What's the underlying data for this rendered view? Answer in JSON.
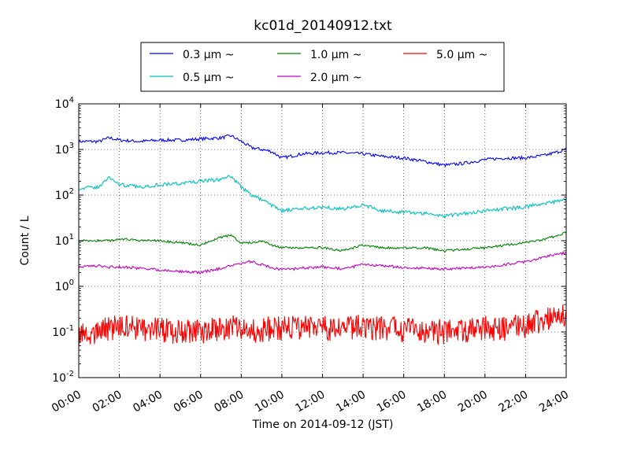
{
  "chart_data": {
    "type": "line",
    "title": "kc01d_20140912.txt",
    "xlabel": "Time on 2014-09-12 (JST)",
    "ylabel": "Count / L",
    "x_ticks": [
      "00:00",
      "02:00",
      "04:00",
      "06:00",
      "08:00",
      "10:00",
      "12:00",
      "14:00",
      "16:00",
      "18:00",
      "20:00",
      "22:00",
      "24:00"
    ],
    "y_ticks": [
      {
        "base": "10",
        "exp": "-2",
        "value": 0.01
      },
      {
        "base": "10",
        "exp": "-1",
        "value": 0.1
      },
      {
        "base": "10",
        "exp": "0",
        "value": 1
      },
      {
        "base": "10",
        "exp": "1",
        "value": 10
      },
      {
        "base": "10",
        "exp": "2",
        "value": 100
      },
      {
        "base": "10",
        "exp": "3",
        "value": 1000
      },
      {
        "base": "10",
        "exp": "4",
        "value": 10000
      }
    ],
    "xlim": [
      "00:00",
      "24:00"
    ],
    "ylim": [
      0.01,
      10000
    ],
    "y_scale": "log",
    "grid": true,
    "legend_position": "top-center",
    "series": [
      {
        "name": "0.3 μm ~",
        "color": "#0000ff",
        "x": [
          "00:00",
          "01:00",
          "01:30",
          "02:00",
          "03:00",
          "04:00",
          "05:00",
          "06:00",
          "07:00",
          "07:30",
          "08:00",
          "08:30",
          "09:00",
          "09:30",
          "10:00",
          "11:00",
          "12:00",
          "13:00",
          "14:00",
          "15:00",
          "16:00",
          "17:00",
          "18:00",
          "19:00",
          "20:00",
          "21:00",
          "22:00",
          "23:00",
          "24:00"
        ],
        "values": [
          1500,
          1500,
          1800,
          1600,
          1500,
          1600,
          1600,
          1700,
          1800,
          2000,
          1500,
          1100,
          1000,
          900,
          650,
          800,
          850,
          850,
          800,
          700,
          650,
          550,
          450,
          500,
          600,
          650,
          650,
          750,
          1000
        ]
      },
      {
        "name": "0.5 μm ~",
        "color": "#00bfbf",
        "x": [
          "00:00",
          "01:00",
          "01:30",
          "02:00",
          "03:00",
          "04:00",
          "05:00",
          "06:00",
          "07:00",
          "07:30",
          "08:00",
          "08:30",
          "09:00",
          "09:30",
          "10:00",
          "11:00",
          "12:00",
          "13:00",
          "14:00",
          "15:00",
          "16:00",
          "17:00",
          "18:00",
          "19:00",
          "20:00",
          "21:00",
          "22:00",
          "23:00",
          "24:00"
        ],
        "values": [
          140,
          150,
          250,
          170,
          150,
          170,
          180,
          200,
          220,
          260,
          150,
          100,
          80,
          60,
          45,
          50,
          55,
          50,
          60,
          45,
          42,
          40,
          35,
          40,
          45,
          50,
          55,
          65,
          80
        ]
      },
      {
        "name": "1.0 μm ~",
        "color": "#008000",
        "x": [
          "00:00",
          "01:00",
          "01:30",
          "02:00",
          "03:00",
          "04:00",
          "05:00",
          "06:00",
          "07:00",
          "07:30",
          "08:00",
          "08:30",
          "09:00",
          "09:30",
          "10:00",
          "11:00",
          "12:00",
          "13:00",
          "14:00",
          "15:00",
          "16:00",
          "17:00",
          "18:00",
          "19:00",
          "20:00",
          "21:00",
          "22:00",
          "23:00",
          "24:00"
        ],
        "values": [
          10,
          10,
          10,
          11,
          10,
          10,
          9,
          8,
          12,
          13,
          9,
          9,
          10,
          8,
          7,
          7,
          7,
          6,
          8,
          7,
          7,
          7,
          6,
          6.5,
          7,
          8,
          9,
          11,
          15
        ]
      },
      {
        "name": "2.0 μm ~",
        "color": "#bf00bf",
        "x": [
          "00:00",
          "01:00",
          "01:30",
          "02:00",
          "03:00",
          "04:00",
          "05:00",
          "06:00",
          "07:00",
          "07:30",
          "08:00",
          "08:30",
          "09:00",
          "09:30",
          "10:00",
          "11:00",
          "12:00",
          "13:00",
          "14:00",
          "15:00",
          "16:00",
          "17:00",
          "18:00",
          "19:00",
          "20:00",
          "21:00",
          "22:00",
          "23:00",
          "24:00"
        ],
        "values": [
          2.7,
          2.8,
          2.6,
          2.7,
          2.5,
          2.3,
          2.1,
          2.0,
          2.5,
          2.8,
          3.2,
          3.5,
          3.0,
          2.6,
          2.3,
          2.5,
          2.7,
          2.4,
          3.0,
          2.8,
          2.6,
          2.5,
          2.4,
          2.5,
          2.6,
          3.0,
          3.5,
          4.5,
          5.5
        ]
      },
      {
        "name": "5.0 μm ~",
        "color": "#ff0000",
        "x": [
          "00:00",
          "01:00",
          "01:30",
          "02:00",
          "03:00",
          "04:00",
          "05:00",
          "06:00",
          "07:00",
          "07:30",
          "08:00",
          "08:30",
          "09:00",
          "09:30",
          "10:00",
          "11:00",
          "12:00",
          "13:00",
          "14:00",
          "15:00",
          "16:00",
          "17:00",
          "18:00",
          "19:00",
          "20:00",
          "21:00",
          "22:00",
          "23:00",
          "24:00"
        ],
        "values": [
          0.08,
          0.1,
          0.12,
          0.13,
          0.12,
          0.11,
          0.1,
          0.1,
          0.12,
          0.13,
          0.12,
          0.1,
          0.11,
          0.12,
          0.12,
          0.13,
          0.12,
          0.12,
          0.13,
          0.12,
          0.11,
          0.11,
          0.1,
          0.11,
          0.12,
          0.12,
          0.14,
          0.18,
          0.25
        ]
      }
    ]
  }
}
